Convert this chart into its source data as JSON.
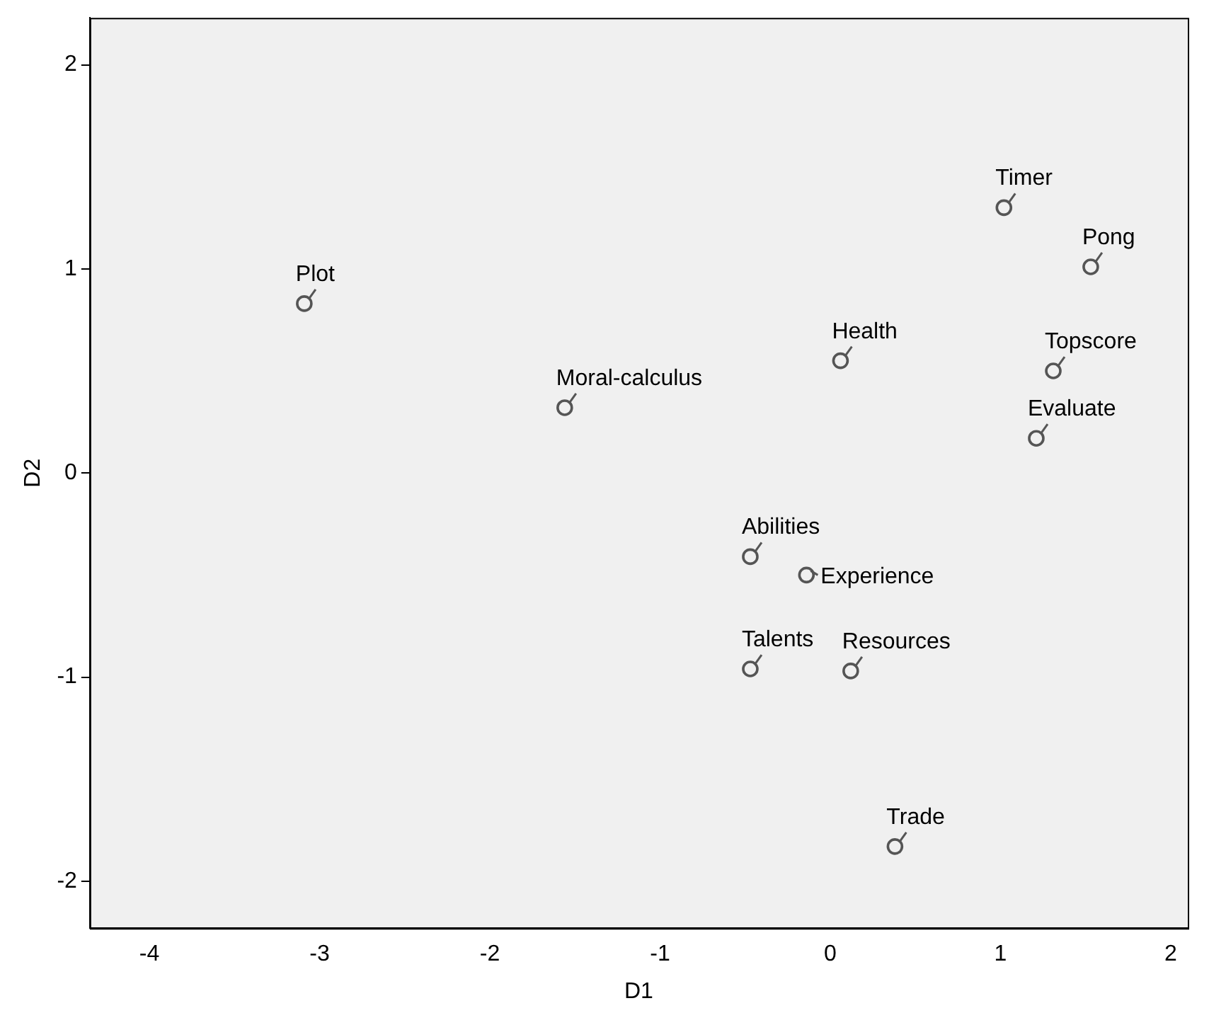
{
  "chart_data": {
    "type": "scatter",
    "xlabel": "D1",
    "ylabel": "D2",
    "x": [
      -3.09,
      -1.56,
      0.06,
      1.02,
      1.53,
      1.31,
      1.21,
      -0.47,
      -0.14,
      -0.47,
      0.12,
      0.38
    ],
    "values": [
      0.83,
      0.32,
      0.55,
      1.3,
      1.01,
      0.5,
      0.17,
      -0.41,
      -0.5,
      -0.96,
      -0.97,
      -1.83
    ],
    "color": "#555555",
    "marker": "circle",
    "grid": false,
    "legend": false,
    "xlim": [
      -4.35,
      2.1
    ],
    "ylim": [
      -2.23,
      2.23
    ],
    "xticks": [
      -4,
      -3,
      -2,
      -1,
      0,
      1,
      2
    ],
    "yticks": [
      -2,
      -1,
      0,
      1,
      2
    ],
    "annotations": [
      {
        "text": "Plot",
        "x": -3.09,
        "y": 0.83
      },
      {
        "text": "Moral-calculus",
        "x": -1.56,
        "y": 0.32
      },
      {
        "text": "Health",
        "x": 0.06,
        "y": 0.55
      },
      {
        "text": "Timer",
        "x": 1.02,
        "y": 1.3
      },
      {
        "text": "Pong",
        "x": 1.53,
        "y": 1.01
      },
      {
        "text": "Topscore",
        "x": 1.31,
        "y": 0.5
      },
      {
        "text": "Evaluate",
        "x": 1.21,
        "y": 0.17
      },
      {
        "text": "Abilities",
        "x": -0.47,
        "y": -0.41
      },
      {
        "text": "Experience",
        "x": -0.14,
        "y": -0.5
      },
      {
        "text": "Talents",
        "x": -0.47,
        "y": -0.96
      },
      {
        "text": "Resources",
        "x": 0.12,
        "y": -0.97
      },
      {
        "text": "Trade",
        "x": 0.38,
        "y": -1.83
      }
    ]
  }
}
